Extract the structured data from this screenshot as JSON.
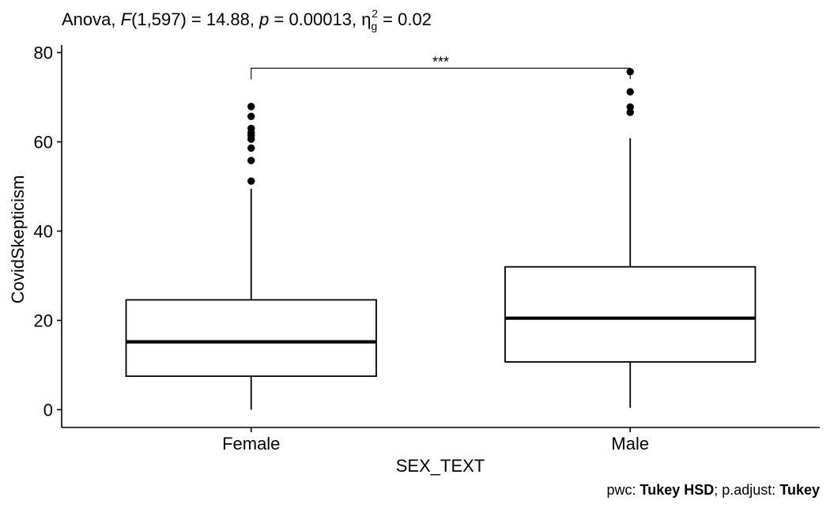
{
  "title": {
    "prefix": "Anova, ",
    "f_symbol": "F",
    "f_args": "(1,597) = 14.88, ",
    "p_symbol": "p",
    "p_value": " = 0.00013, ",
    "eta": "η",
    "eta_sub": "g",
    "eta_sup": "2",
    "eta_value": " = 0.02"
  },
  "caption": {
    "pwc_label": "pwc: ",
    "pwc_method": "Tukey HSD",
    "sep": "; p.adjust: ",
    "adjust_method": "Tukey"
  },
  "chart_data": {
    "type": "boxplot",
    "xlabel": "SEX_TEXT",
    "ylabel": "CovidSkepticism",
    "ylim": [
      -4,
      80
    ],
    "yticks": [
      0,
      20,
      40,
      60,
      80
    ],
    "categories": [
      "Female",
      "Male"
    ],
    "boxes": [
      {
        "category": "Female",
        "whisker_low": 0,
        "q1": 7.5,
        "median": 15.2,
        "q3": 24.6,
        "whisker_high": 49.5,
        "outliers": [
          51.2,
          55.8,
          58.6,
          60.6,
          61.4,
          62.0,
          63.0,
          65.7,
          67.9
        ]
      },
      {
        "category": "Male",
        "whisker_low": 0.4,
        "q1": 10.7,
        "median": 20.5,
        "q3": 32.0,
        "whisker_high": 60.8,
        "outliers": [
          66.6,
          67.8,
          71.2,
          75.7
        ]
      }
    ],
    "comparison": {
      "from": "Female",
      "to": "Male",
      "y": 76.5,
      "label": "***"
    },
    "grid": false,
    "legend": "none"
  }
}
